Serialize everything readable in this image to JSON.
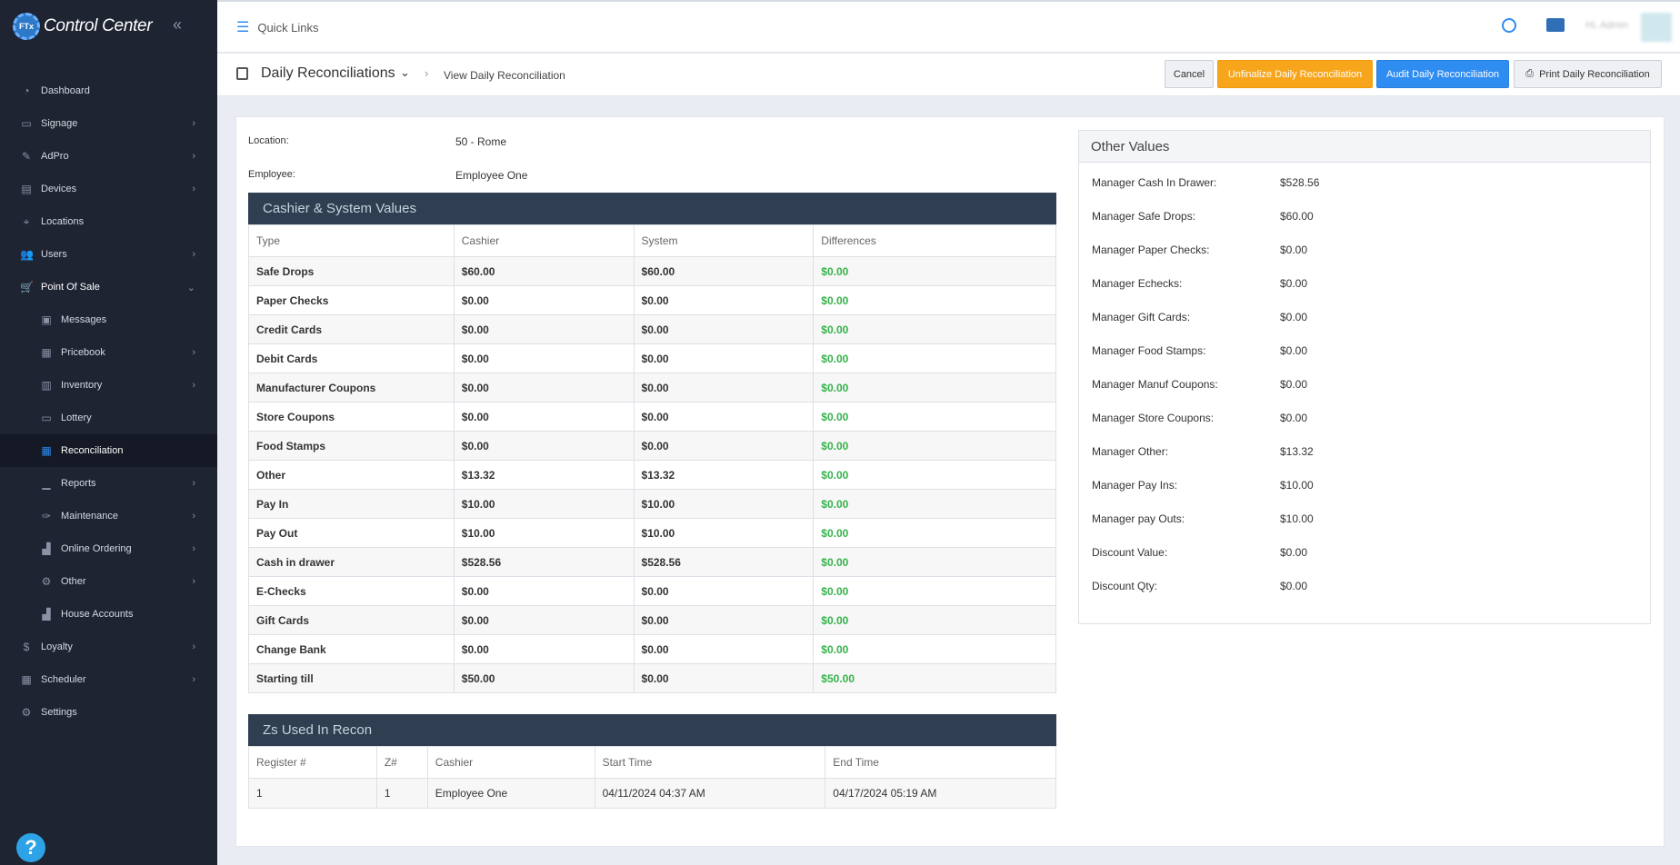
{
  "app": {
    "title": "Control Center",
    "logo_text": "FTx"
  },
  "sidebar": {
    "items": [
      {
        "label": "Dashboard",
        "icon": "dashboard-icon",
        "glyph": "◔",
        "chevron": false
      },
      {
        "label": "Signage",
        "icon": "monitor-icon",
        "glyph": "▭",
        "chevron": true
      },
      {
        "label": "AdPro",
        "icon": "brush-icon",
        "glyph": "✎",
        "chevron": true
      },
      {
        "label": "Devices",
        "icon": "devices-icon",
        "glyph": "▤",
        "chevron": true
      },
      {
        "label": "Locations",
        "icon": "map-pin-icon",
        "glyph": "⌖",
        "chevron": false
      },
      {
        "label": "Users",
        "icon": "users-icon",
        "glyph": "👥",
        "chevron": true
      },
      {
        "label": "Point Of Sale",
        "icon": "cart-icon",
        "glyph": "🛒",
        "chevron": true,
        "open": true
      },
      {
        "label": "Messages",
        "icon": "message-icon",
        "glyph": "▣",
        "chevron": false,
        "sub": true
      },
      {
        "label": "Pricebook",
        "icon": "calculator-icon",
        "glyph": "▦",
        "chevron": true,
        "sub": true
      },
      {
        "label": "Inventory",
        "icon": "warehouse-icon",
        "glyph": "▥",
        "chevron": true,
        "sub": true
      },
      {
        "label": "Lottery",
        "icon": "ticket-icon",
        "glyph": "▭",
        "chevron": false,
        "sub": true
      },
      {
        "label": "Reconciliation",
        "icon": "grid-icon",
        "glyph": "▦",
        "chevron": false,
        "sub": true,
        "active": true
      },
      {
        "label": "Reports",
        "icon": "chart-icon",
        "glyph": "▁",
        "chevron": true,
        "sub": true
      },
      {
        "label": "Maintenance",
        "icon": "wrench-icon",
        "glyph": "✑",
        "chevron": true,
        "sub": true
      },
      {
        "label": "Online Ordering",
        "icon": "bag-icon",
        "glyph": "▟",
        "chevron": true,
        "sub": true
      },
      {
        "label": "Other",
        "icon": "gears-icon",
        "glyph": "⚙",
        "chevron": true,
        "sub": true
      },
      {
        "label": "House Accounts",
        "icon": "bag-icon",
        "glyph": "▟",
        "chevron": false,
        "sub": true
      },
      {
        "label": "Loyalty",
        "icon": "dollar-icon",
        "glyph": "$",
        "chevron": true
      },
      {
        "label": "Scheduler",
        "icon": "calendar-icon",
        "glyph": "▦",
        "chevron": true
      },
      {
        "label": "Settings",
        "icon": "gear-icon",
        "glyph": "⚙",
        "chevron": false
      }
    ],
    "help_label": "?"
  },
  "topbar": {
    "quick_links": "Quick Links",
    "user_name": "Hi, Admin"
  },
  "header": {
    "title": "Daily Reconciliations",
    "breadcrumb": "View Daily Reconciliation",
    "buttons": {
      "cancel": "Cancel",
      "unfinalize": "Unfinalize Daily Reconciliation",
      "audit": "Audit Daily Reconciliation",
      "print": "Print Daily Reconciliation"
    }
  },
  "info": {
    "location_label": "Location:",
    "location_value": "50 - Rome",
    "employee_label": "Employee:",
    "employee_value": "Employee One"
  },
  "cashier_system": {
    "title": "Cashier & System Values",
    "columns": [
      "Type",
      "Cashier",
      "System",
      "Differences"
    ],
    "rows": [
      [
        "Safe Drops",
        "$60.00",
        "$60.00",
        "$0.00"
      ],
      [
        "Paper Checks",
        "$0.00",
        "$0.00",
        "$0.00"
      ],
      [
        "Credit Cards",
        "$0.00",
        "$0.00",
        "$0.00"
      ],
      [
        "Debit Cards",
        "$0.00",
        "$0.00",
        "$0.00"
      ],
      [
        "Manufacturer Coupons",
        "$0.00",
        "$0.00",
        "$0.00"
      ],
      [
        "Store Coupons",
        "$0.00",
        "$0.00",
        "$0.00"
      ],
      [
        "Food Stamps",
        "$0.00",
        "$0.00",
        "$0.00"
      ],
      [
        "Other",
        "$13.32",
        "$13.32",
        "$0.00"
      ],
      [
        "Pay In",
        "$10.00",
        "$10.00",
        "$0.00"
      ],
      [
        "Pay Out",
        "$10.00",
        "$10.00",
        "$0.00"
      ],
      [
        "Cash in drawer",
        "$528.56",
        "$528.56",
        "$0.00"
      ],
      [
        "E-Checks",
        "$0.00",
        "$0.00",
        "$0.00"
      ],
      [
        "Gift Cards",
        "$0.00",
        "$0.00",
        "$0.00"
      ],
      [
        "Change Bank",
        "$0.00",
        "$0.00",
        "$0.00"
      ],
      [
        "Starting till",
        "$50.00",
        "$0.00",
        "$50.00"
      ]
    ]
  },
  "zs_used": {
    "title": "Zs Used In Recon",
    "columns": [
      "Register #",
      "Z#",
      "Cashier",
      "Start Time",
      "End Time"
    ],
    "rows": [
      [
        "1",
        "1",
        "Employee One",
        "04/11/2024 04:37 AM",
        "04/17/2024 05:19 AM"
      ]
    ]
  },
  "other_values": {
    "title": "Other Values",
    "rows": [
      [
        "Manager Cash In Drawer:",
        "$528.56"
      ],
      [
        "Manager Safe Drops:",
        "$60.00"
      ],
      [
        "Manager Paper Checks:",
        "$0.00"
      ],
      [
        "Manager Echecks:",
        "$0.00"
      ],
      [
        "Manager Gift Cards:",
        "$0.00"
      ],
      [
        "Manager Food Stamps:",
        "$0.00"
      ],
      [
        "Manager Manuf Coupons:",
        "$0.00"
      ],
      [
        "Manager Store Coupons:",
        "$0.00"
      ],
      [
        "Manager Other:",
        "$13.32"
      ],
      [
        "Manager Pay Ins:",
        "$10.00"
      ],
      [
        "Manager pay Outs:",
        "$10.00"
      ],
      [
        "Discount Value:",
        "$0.00"
      ],
      [
        "Discount Qty:",
        "$0.00"
      ]
    ]
  },
  "colors": {
    "accent": "#2f8cf0",
    "warning": "#f7a51b",
    "success": "#34b24a",
    "sidebar": "#1f2432",
    "panel_head": "#2f3e50"
  }
}
